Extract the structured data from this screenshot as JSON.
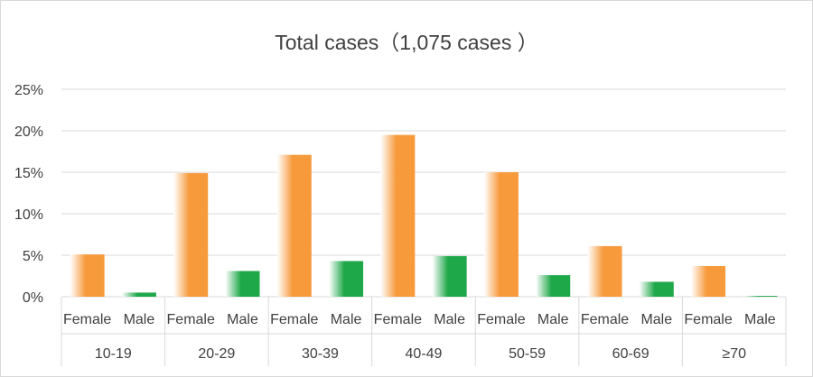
{
  "colors": {
    "female": "#f79a3c",
    "male": "#1fa84a",
    "grid": "#d9d9d9",
    "text": "#404040"
  },
  "chart_data": {
    "type": "bar",
    "title": "Total cases（1,075 cases ）",
    "xlabel": "",
    "ylabel": "",
    "ylim": [
      0,
      25
    ],
    "yticks": [
      "0%",
      "5%",
      "10%",
      "15%",
      "20%",
      "25%"
    ],
    "grid": true,
    "groups": [
      {
        "label": "10-19",
        "bars": [
          {
            "sex": "Female",
            "value": 5.1
          },
          {
            "sex": "Male",
            "value": 0.5
          }
        ]
      },
      {
        "label": "20-29",
        "bars": [
          {
            "sex": "Female",
            "value": 14.9
          },
          {
            "sex": "Male",
            "value": 3.1
          }
        ]
      },
      {
        "label": "30-39",
        "bars": [
          {
            "sex": "Female",
            "value": 17.1
          },
          {
            "sex": "Male",
            "value": 4.3
          }
        ]
      },
      {
        "label": "40-49",
        "bars": [
          {
            "sex": "Female",
            "value": 19.5
          },
          {
            "sex": "Male",
            "value": 4.9
          }
        ]
      },
      {
        "label": "50-59",
        "bars": [
          {
            "sex": "Female",
            "value": 15.0
          },
          {
            "sex": "Male",
            "value": 2.6
          }
        ]
      },
      {
        "label": "60-69",
        "bars": [
          {
            "sex": "Female",
            "value": 6.1
          },
          {
            "sex": "Male",
            "value": 1.8
          }
        ]
      },
      {
        "label": "≥70",
        "bars": [
          {
            "sex": "Female",
            "value": 3.7
          },
          {
            "sex": "Male",
            "value": 0.1
          }
        ]
      }
    ]
  }
}
